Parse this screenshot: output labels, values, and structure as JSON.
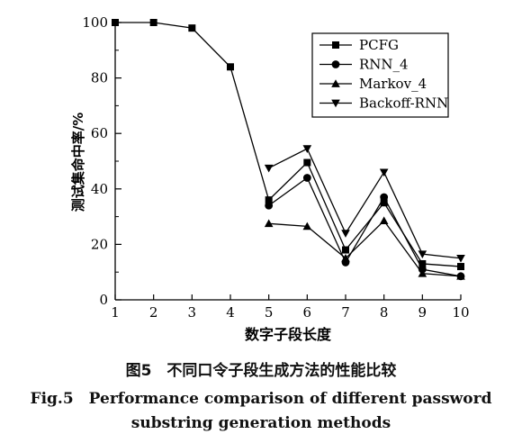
{
  "chart_data": {
    "type": "line",
    "x": [
      1,
      2,
      3,
      4,
      5,
      6,
      7,
      8,
      9,
      10
    ],
    "xlabel": "数字子段长度",
    "ylabel": "测试集命中率/%",
    "xlim": [
      1,
      10
    ],
    "ylim": [
      0,
      100
    ],
    "x_ticks": [
      1,
      2,
      3,
      4,
      5,
      6,
      7,
      8,
      9,
      10
    ],
    "y_ticks": [
      0,
      20,
      40,
      60,
      80,
      100
    ],
    "grid": false,
    "legend_position": "top-right",
    "series": [
      {
        "name": "PCFG",
        "marker": "square",
        "values": [
          100,
          100,
          98,
          84,
          36,
          49.5,
          18,
          35,
          13,
          12
        ]
      },
      {
        "name": "RNN_4",
        "marker": "circle",
        "values": [
          null,
          null,
          null,
          null,
          34,
          44,
          13.5,
          37,
          11,
          8.5
        ]
      },
      {
        "name": "Markov_4",
        "marker": "triangle-up",
        "values": [
          null,
          null,
          null,
          null,
          27.5,
          26.5,
          15,
          28.5,
          9.5,
          8.5
        ]
      },
      {
        "name": "Backoff-RNN",
        "marker": "triangle-down",
        "values": [
          null,
          null,
          null,
          null,
          47.5,
          54.5,
          24,
          46,
          16.5,
          15
        ]
      }
    ]
  },
  "caption": {
    "cn": "图5　不同口令子段生成方法的性能比较",
    "en_line1": "Fig.5　Performance comparison of different password",
    "en_line2": "substring generation methods"
  }
}
